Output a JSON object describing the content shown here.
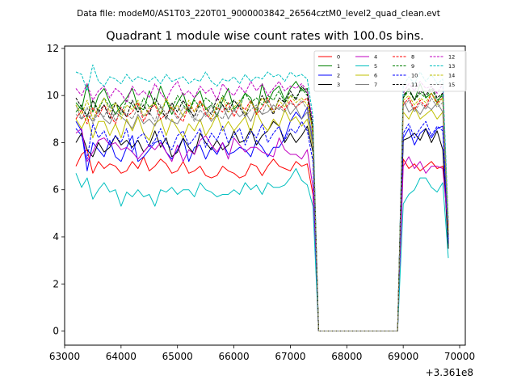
{
  "suptitle": "Data file: modeM0/AS1T03_220T01_9000003842_26564cztM0_level2_quad_clean.evt",
  "chart_data": {
    "type": "line",
    "title": "Quadrant 1 module wise count rates with 100.0s bins.",
    "xlabel": "",
    "ylabel": "",
    "x_offset_label": "+3.361e8",
    "xlim": [
      63000,
      70100
    ],
    "ylim": [
      -0.6,
      12.1
    ],
    "xticks": [
      63000,
      64000,
      65000,
      66000,
      67000,
      68000,
      69000,
      70000
    ],
    "yticks": [
      0,
      2,
      4,
      6,
      8,
      10,
      12
    ],
    "legend_position": "top-right",
    "legend_columns": 4,
    "x": [
      63200,
      63300,
      63400,
      63500,
      63600,
      63700,
      63800,
      63900,
      64000,
      64100,
      64200,
      64300,
      64400,
      64500,
      64600,
      64700,
      64800,
      64900,
      65000,
      65100,
      65200,
      65300,
      65400,
      65500,
      65600,
      65700,
      65800,
      65900,
      66000,
      66100,
      66200,
      66300,
      66400,
      66500,
      66600,
      66700,
      66800,
      66900,
      67000,
      67100,
      67200,
      67300,
      67400,
      67500,
      68900,
      69000,
      69100,
      69200,
      69300,
      69400,
      69500,
      69600,
      69700,
      69800
    ],
    "series": [
      {
        "name": "0",
        "color": "#ff0000",
        "dash": "solid",
        "values": [
          7.0,
          7.5,
          7.7,
          6.7,
          7.2,
          6.9,
          7.1,
          7.0,
          6.7,
          6.8,
          7.2,
          6.9,
          7.4,
          6.8,
          7.0,
          7.3,
          7.1,
          6.7,
          6.8,
          7.2,
          6.7,
          6.8,
          7.0,
          6.6,
          6.5,
          6.6,
          7.0,
          6.8,
          6.7,
          6.5,
          6.6,
          7.1,
          7.0,
          6.6,
          7.0,
          7.3,
          7.0,
          6.9,
          6.8,
          7.2,
          7.0,
          7.1,
          5.8,
          0.0,
          0.0,
          7.3,
          6.9,
          7.1,
          6.8,
          7.0,
          7.2,
          6.9,
          7.0,
          4.5
        ]
      },
      {
        "name": "1",
        "color": "#008000",
        "dash": "solid",
        "values": [
          9.7,
          9.4,
          10.5,
          9.3,
          10.0,
          10.3,
          9.7,
          9.2,
          9.6,
          9.9,
          10.3,
          9.5,
          9.4,
          10.2,
          9.6,
          10.4,
          9.8,
          9.2,
          9.7,
          10.1,
          9.3,
          9.9,
          10.2,
          9.4,
          9.6,
          9.1,
          9.8,
          10.3,
          9.4,
          9.7,
          10.1,
          9.9,
          9.2,
          10.5,
          9.7,
          10.2,
          10.4,
          9.8,
          10.3,
          10.6,
          10.2,
          10.3,
          8.3,
          0.0,
          0.0,
          9.9,
          10.3,
          9.8,
          10.5,
          9.9,
          10.1,
          9.7,
          10.1,
          3.6
        ]
      },
      {
        "name": "2",
        "color": "#0000ff",
        "dash": "solid",
        "values": [
          8.9,
          8.5,
          6.8,
          8.0,
          7.7,
          7.4,
          8.1,
          7.4,
          7.2,
          7.8,
          8.3,
          7.2,
          7.4,
          7.7,
          8.0,
          8.1,
          7.6,
          7.3,
          7.7,
          8.2,
          7.2,
          7.8,
          7.9,
          7.3,
          7.8,
          7.5,
          8.0,
          7.5,
          7.6,
          7.8,
          7.7,
          7.4,
          8.1,
          7.8,
          7.4,
          7.8,
          7.8,
          8.2,
          8.9,
          9.3,
          9.0,
          9.5,
          8.0,
          0.0,
          0.0,
          8.2,
          8.6,
          7.9,
          8.4,
          8.6,
          8.2,
          8.6,
          8.7,
          3.7
        ]
      },
      {
        "name": "3",
        "color": "#000000",
        "dash": "solid",
        "values": [
          8.0,
          8.4,
          7.7,
          7.4,
          8.0,
          7.6,
          7.8,
          8.3,
          7.9,
          8.1,
          7.8,
          8.1,
          7.6,
          7.9,
          8.5,
          7.8,
          8.2,
          7.4,
          7.6,
          8.2,
          7.8,
          7.5,
          8.4,
          8.0,
          7.7,
          8.1,
          7.7,
          7.9,
          8.5,
          8.0,
          8.1,
          8.6,
          7.9,
          8.3,
          8.5,
          8.9,
          8.7,
          8.0,
          8.4,
          8.0,
          8.3,
          8.7,
          7.6,
          0.0,
          0.0,
          8.1,
          8.2,
          8.4,
          8.1,
          8.6,
          8.0,
          8.5,
          7.7,
          3.5
        ]
      },
      {
        "name": "4",
        "color": "#c000c0",
        "dash": "solid",
        "values": [
          8.4,
          8.6,
          7.2,
          7.6,
          8.1,
          8.2,
          7.9,
          8.0,
          7.7,
          7.8,
          7.6,
          7.3,
          7.6,
          7.9,
          7.7,
          8.0,
          7.6,
          7.2,
          7.9,
          7.2,
          7.7,
          7.5,
          8.1,
          8.3,
          7.9,
          7.6,
          8.0,
          7.3,
          8.2,
          7.9,
          7.6,
          7.8,
          7.8,
          7.6,
          7.5,
          7.4,
          8.2,
          7.7,
          7.5,
          7.5,
          7.3,
          7.7,
          6.1,
          0.0,
          0.0,
          7.0,
          7.4,
          6.9,
          7.2,
          6.7,
          7.0,
          7.0,
          6.9,
          4.3
        ]
      },
      {
        "name": "5",
        "color": "#00bfbf",
        "dash": "solid",
        "values": [
          6.7,
          6.1,
          6.5,
          5.6,
          6.0,
          6.3,
          5.9,
          6.0,
          5.3,
          5.9,
          5.7,
          6.0,
          5.7,
          5.8,
          5.3,
          6.0,
          5.9,
          6.1,
          5.8,
          6.0,
          6.0,
          5.7,
          6.3,
          6.0,
          5.9,
          5.7,
          5.8,
          5.8,
          6.0,
          5.8,
          6.3,
          6.0,
          6.2,
          5.8,
          6.3,
          6.1,
          6.1,
          6.2,
          6.5,
          6.9,
          6.4,
          6.2,
          5.3,
          0.0,
          0.0,
          5.4,
          5.8,
          6.0,
          6.5,
          6.5,
          6.1,
          5.9,
          6.3,
          3.1
        ]
      },
      {
        "name": "6",
        "color": "#bfbf00",
        "dash": "solid",
        "values": [
          9.0,
          8.6,
          9.1,
          8.2,
          8.9,
          8.9,
          8.3,
          8.8,
          8.2,
          9.0,
          8.5,
          9.1,
          8.4,
          8.1,
          8.8,
          9.0,
          8.3,
          9.0,
          8.6,
          8.2,
          8.8,
          8.5,
          9.0,
          8.3,
          8.7,
          9.2,
          8.5,
          8.9,
          8.5,
          8.8,
          9.1,
          8.4,
          9.3,
          8.8,
          8.5,
          9.0,
          8.7,
          9.4,
          8.9,
          9.1,
          8.7,
          9.0,
          7.8,
          0.0,
          0.0,
          9.3,
          9.0,
          9.5,
          9.0,
          9.2,
          9.4,
          9.0,
          9.3,
          4.2
        ]
      },
      {
        "name": "7",
        "color": "#808080",
        "dash": "solid",
        "values": [
          9.6,
          9.0,
          9.2,
          8.9,
          9.4,
          9.0,
          8.8,
          9.3,
          9.1,
          8.9,
          8.6,
          9.2,
          8.8,
          9.0,
          8.7,
          9.3,
          9.1,
          8.9,
          8.8,
          9.2,
          9.5,
          9.0,
          8.9,
          9.3,
          8.9,
          9.2,
          9.6,
          9.0,
          9.4,
          9.1,
          9.3,
          8.9,
          9.5,
          9.2,
          9.3,
          9.6,
          9.4,
          9.7,
          9.2,
          9.5,
          9.0,
          9.3,
          7.9,
          0.0,
          0.0,
          9.8,
          9.3,
          9.5,
          9.2,
          9.6,
          9.4,
          9.7,
          9.3,
          4.2
        ]
      },
      {
        "name": "8",
        "color": "#ff0000",
        "dash": "dashed",
        "values": [
          9.0,
          9.4,
          8.8,
          9.5,
          9.1,
          9.6,
          9.2,
          8.8,
          9.5,
          9.1,
          9.3,
          9.7,
          8.9,
          9.4,
          9.6,
          9.0,
          9.2,
          9.5,
          9.1,
          8.9,
          9.6,
          9.3,
          9.8,
          9.2,
          9.0,
          9.5,
          9.3,
          9.7,
          9.1,
          9.6,
          9.4,
          9.8,
          9.2,
          9.5,
          9.9,
          9.3,
          9.6,
          9.4,
          9.8,
          9.5,
          9.7,
          9.9,
          8.4,
          0.0,
          0.0,
          9.6,
          9.9,
          9.4,
          9.8,
          9.5,
          10.1,
          9.7,
          9.9,
          4.4
        ]
      },
      {
        "name": "9",
        "color": "#008000",
        "dash": "dashed",
        "values": [
          9.3,
          9.6,
          9.1,
          9.8,
          9.4,
          9.9,
          9.5,
          9.7,
          9.2,
          9.8,
          9.6,
          9.3,
          9.9,
          9.5,
          9.7,
          9.2,
          9.8,
          9.4,
          10.0,
          9.6,
          9.3,
          9.8,
          9.5,
          9.9,
          9.7,
          9.4,
          10.0,
          9.6,
          9.8,
          9.5,
          10.1,
          9.7,
          9.9,
          9.6,
          10.0,
          9.8,
          10.2,
          9.7,
          10.0,
          9.9,
          10.3,
          10.0,
          8.6,
          0.0,
          0.0,
          9.9,
          10.2,
          9.8,
          10.1,
          9.9,
          10.3,
          9.8,
          10.0,
          4.1
        ]
      },
      {
        "name": "10",
        "color": "#0000ff",
        "dash": "dashed",
        "values": [
          8.6,
          8.3,
          7.3,
          8.8,
          8.2,
          8.5,
          7.9,
          8.3,
          8.0,
          8.6,
          7.6,
          8.2,
          8.4,
          7.8,
          8.1,
          8.6,
          8.0,
          7.7,
          8.3,
          8.5,
          7.9,
          8.2,
          8.6,
          7.8,
          8.4,
          8.1,
          8.7,
          8.0,
          8.3,
          8.6,
          7.9,
          8.5,
          8.2,
          8.8,
          8.0,
          8.4,
          8.7,
          8.1,
          8.6,
          8.4,
          8.9,
          8.5,
          7.2,
          0.0,
          0.0,
          8.4,
          8.8,
          8.2,
          8.6,
          8.9,
          8.3,
          8.7,
          8.5,
          3.9
        ]
      },
      {
        "name": "11",
        "color": "#000000",
        "dash": "dashed",
        "values": [
          9.9,
          9.5,
          9.1,
          9.8,
          9.3,
          9.6,
          9.0,
          9.7,
          9.4,
          9.1,
          9.8,
          9.3,
          9.6,
          9.2,
          9.9,
          9.5,
          9.0,
          9.7,
          9.3,
          9.8,
          9.4,
          9.1,
          9.7,
          9.5,
          9.2,
          9.9,
          9.6,
          9.3,
          9.8,
          9.5,
          9.1,
          9.7,
          9.4,
          10.0,
          9.6,
          9.2,
          9.9,
          9.7,
          10.2,
          9.8,
          10.4,
          10.1,
          8.7,
          0.0,
          0.0,
          10.0,
          10.3,
          9.8,
          10.2,
          10.0,
          10.4,
          9.9,
          10.1,
          4.0
        ]
      },
      {
        "name": "12",
        "color": "#c000c0",
        "dash": "dashed",
        "values": [
          10.3,
          10.0,
          10.5,
          9.8,
          10.2,
          10.4,
          9.9,
          10.3,
          10.1,
          9.7,
          10.4,
          10.0,
          10.2,
          9.9,
          10.5,
          10.1,
          9.8,
          10.3,
          10.6,
          10.0,
          10.2,
          9.9,
          10.4,
          10.1,
          10.3,
          9.8,
          10.5,
          10.2,
          10.0,
          10.4,
          10.1,
          10.6,
          10.2,
          10.5,
          10.0,
          10.3,
          10.6,
          10.2,
          10.4,
          10.3,
          10.5,
          10.2,
          8.9,
          0.0,
          0.0,
          10.1,
          10.5,
          10.2,
          10.6,
          10.3,
          10.4,
          10.1,
          10.5,
          4.6
        ]
      },
      {
        "name": "13",
        "color": "#00bfbf",
        "dash": "dashed",
        "values": [
          11.0,
          10.9,
          10.2,
          11.3,
          10.6,
          10.4,
          10.8,
          10.7,
          10.5,
          10.9,
          10.6,
          10.8,
          10.7,
          10.6,
          10.8,
          10.5,
          10.9,
          10.6,
          10.7,
          10.8,
          10.5,
          10.7,
          10.6,
          11.0,
          10.6,
          10.4,
          10.7,
          10.6,
          10.8,
          10.5,
          10.9,
          10.6,
          10.8,
          10.7,
          11.0,
          10.8,
          10.9,
          10.6,
          11.0,
          10.8,
          10.9,
          10.7,
          9.1,
          0.0,
          0.0,
          10.4,
          10.8,
          10.5,
          11.0,
          10.6,
          10.9,
          10.5,
          10.7,
          4.7
        ]
      },
      {
        "name": "14",
        "color": "#bfbf00",
        "dash": "dashed",
        "values": [
          9.6,
          9.2,
          9.8,
          9.0,
          9.5,
          9.9,
          9.3,
          9.7,
          9.0,
          9.6,
          9.4,
          9.8,
          9.1,
          9.5,
          9.7,
          9.2,
          9.9,
          9.4,
          9.6,
          9.1,
          9.8,
          9.3,
          9.7,
          9.5,
          9.0,
          9.6,
          9.9,
          9.3,
          9.5,
          9.8,
          9.2,
          9.7,
          9.4,
          9.9,
          9.6,
          9.3,
          9.8,
          9.5,
          10.0,
          9.7,
          9.9,
          9.6,
          8.5,
          0.0,
          0.0,
          9.8,
          10.0,
          9.6,
          9.9,
          9.7,
          10.1,
          9.6,
          9.9,
          4.3
        ]
      },
      {
        "name": "15",
        "color": "#808080",
        "dash": "dashed",
        "values": [
          9.2,
          9.0,
          9.5,
          8.8,
          9.3,
          9.1,
          9.6,
          8.9,
          9.4,
          9.2,
          9.0,
          9.5,
          9.1,
          9.3,
          8.9,
          9.6,
          9.2,
          9.4,
          9.0,
          9.5,
          9.3,
          8.9,
          9.4,
          9.1,
          9.6,
          9.2,
          9.0,
          9.5,
          9.3,
          9.7,
          9.1,
          9.4,
          9.6,
          9.2,
          9.8,
          9.4,
          9.5,
          9.3,
          9.7,
          9.5,
          9.8,
          9.4,
          8.2,
          0.0,
          0.0,
          9.5,
          9.8,
          9.3,
          9.7,
          9.4,
          9.9,
          9.5,
          9.7,
          4.1
        ]
      }
    ]
  }
}
